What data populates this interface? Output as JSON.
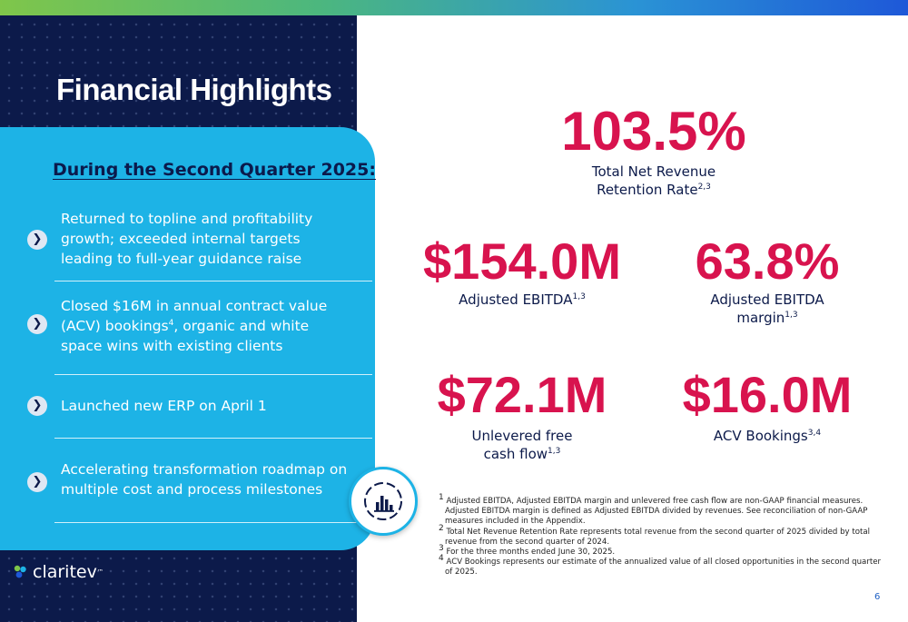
{
  "slide": {
    "title": "Financial Highlights",
    "page_number": "6",
    "logo_text": "claritev",
    "logo_mark": "™"
  },
  "card": {
    "header": "During the Second Quarter 2025:",
    "items": [
      {
        "line1": "Returned to topline and profitability",
        "line2": "growth; exceeded internal targets",
        "line3": "leading to full-year guidance raise"
      },
      {
        "line1": "Closed $16M in annual contract value",
        "line2a": "(ACV) bookings",
        "line2sup": "4",
        "line2b": ", organic and white",
        "line3": "space wins with existing clients"
      },
      {
        "line1": "Launched new ERP on April 1"
      },
      {
        "line1": "Accelerating transformation roadmap on",
        "line2": "multiple cost and process milestones"
      }
    ],
    "chevron_icon": "chevron-right-icon",
    "badge_icon": "bar-chart-icon"
  },
  "metrics": {
    "retention": {
      "value": "103.5%",
      "label1": "Total Net Revenue",
      "label2": "Retention Rate",
      "sup": "2,3"
    },
    "ebitda": {
      "value": "$154.0M",
      "label1": "Adjusted EBITDA",
      "sup": "1,3"
    },
    "margin": {
      "value": "63.8%",
      "label1": "Adjusted EBITDA",
      "label2": "margin",
      "sup": "1,3"
    },
    "fcf": {
      "value": "$72.1M",
      "label1": "Unlevered free",
      "label2": "cash flow",
      "sup": "1,3"
    },
    "acv": {
      "value": "$16.0M",
      "label1": "ACV Bookings",
      "sup": "3,4"
    }
  },
  "footnotes": [
    {
      "mark": "1",
      "text": "Adjusted EBITDA, Adjusted EBITDA margin and unlevered free cash flow are non-GAAP financial measures. Adjusted EBITDA margin is defined as Adjusted EBITDA divided by revenues. See reconciliation of non-GAAP measures included in the Appendix."
    },
    {
      "mark": "2",
      "text": "Total Net Revenue Retention Rate represents total revenue from the second quarter of 2025 divided by total revenue from the second quarter of 2024."
    },
    {
      "mark": "3",
      "text": "For the three months ended June 30, 2025."
    },
    {
      "mark": "4",
      "text": "ACV Bookings represents our estimate of the annualized value of all closed opportunities in the second quarter of 2025."
    }
  ],
  "colors": {
    "navy": "#0c1a4a",
    "cyan": "#1db3e6",
    "accent_red": "#d8134e",
    "gradient": [
      "#7fc64a",
      "#2a93d5",
      "#1e58d8"
    ]
  }
}
